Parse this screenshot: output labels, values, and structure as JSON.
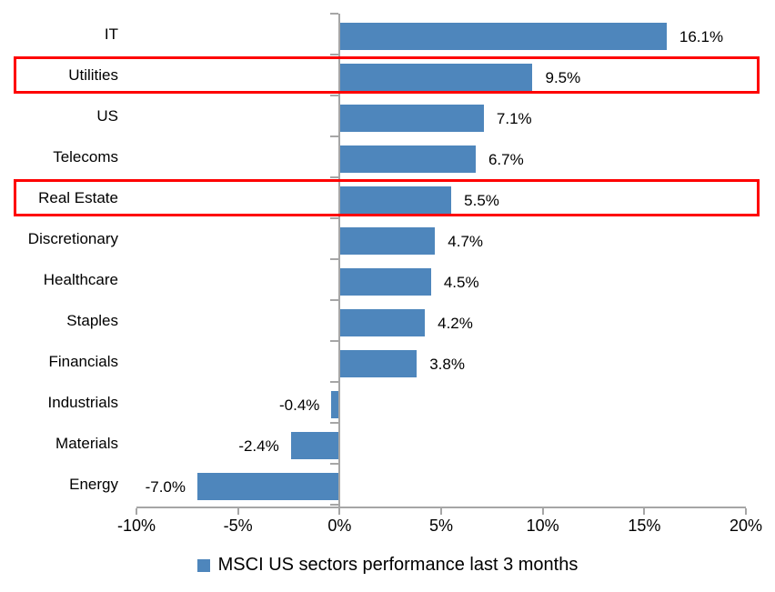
{
  "chart_data": {
    "type": "bar",
    "orientation": "horizontal",
    "title": "",
    "categories": [
      "IT",
      "Utilities",
      "US",
      "Telecoms",
      "Real Estate",
      "Discretionary",
      "Healthcare",
      "Staples",
      "Financials",
      "Industrials",
      "Materials",
      "Energy"
    ],
    "values": [
      16.1,
      9.5,
      7.1,
      6.7,
      5.5,
      4.7,
      4.5,
      4.2,
      3.8,
      -0.4,
      -2.4,
      -7.0
    ],
    "value_labels": [
      "16.1%",
      "9.5%",
      "7.1%",
      "6.7%",
      "5.5%",
      "4.7%",
      "4.5%",
      "4.2%",
      "3.8%",
      "-0.4%",
      "-2.4%",
      "-7.0%"
    ],
    "x_axis": {
      "min": -10,
      "max": 20,
      "tick_step": 5,
      "tick_labels": [
        "-10%",
        "-5%",
        "0%",
        "5%",
        "10%",
        "15%",
        "20%"
      ]
    },
    "legend": {
      "label": "MSCI US sectors performance last 3 months",
      "position": "bottom-center"
    },
    "grid": "off",
    "bar_color": "#4e86bc",
    "axis_color": "#a6a6a6",
    "text_color": "#000000",
    "highlight": {
      "color": "#fe0000",
      "rows": [
        "Utilities",
        "Real Estate"
      ]
    }
  }
}
